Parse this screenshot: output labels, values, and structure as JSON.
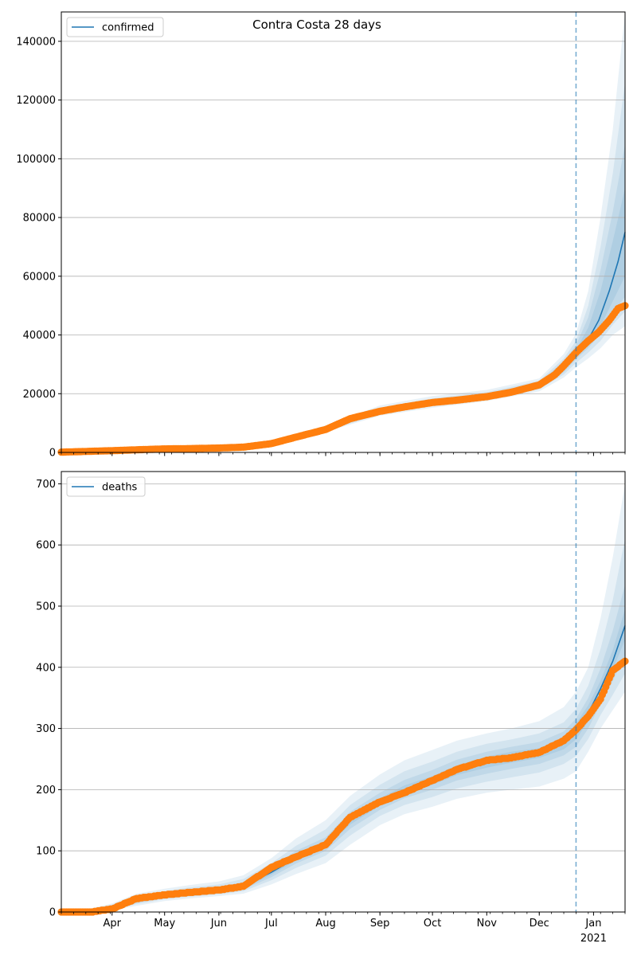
{
  "figure": {
    "title": "Contra Costa 28 days"
  },
  "chart_data": [
    {
      "type": "line",
      "name": "confirmed-panel",
      "legend": {
        "placement": "top-left",
        "entries": [
          "confirmed"
        ]
      },
      "grid": {
        "y": true,
        "x": false
      },
      "xlim": [
        "2020-03-03",
        "2021-01-19"
      ],
      "ylim": [
        0,
        150000
      ],
      "yticks": [
        0,
        20000,
        40000,
        60000,
        80000,
        100000,
        120000,
        140000
      ],
      "forecast_start": "2020-12-22",
      "fit": {
        "name": "confirmed",
        "x": [
          "2020-03-03",
          "2020-04-01",
          "2020-05-01",
          "2020-06-01",
          "2020-07-01",
          "2020-07-15",
          "2020-08-01",
          "2020-08-15",
          "2020-09-01",
          "2020-09-15",
          "2020-10-01",
          "2020-10-15",
          "2020-11-01",
          "2020-11-15",
          "2020-12-01",
          "2020-12-10",
          "2020-12-15",
          "2020-12-22",
          "2020-12-29",
          "2021-01-04",
          "2021-01-10",
          "2021-01-15",
          "2021-01-19"
        ],
        "y": [
          200,
          600,
          1200,
          1500,
          3200,
          5300,
          8000,
          11500,
          14000,
          15500,
          17000,
          17800,
          19000,
          20500,
          23000,
          26500,
          29000,
          33500,
          38500,
          45000,
          55000,
          65000,
          75000
        ]
      },
      "bands": {
        "x": [
          "2020-03-03",
          "2020-04-01",
          "2020-05-01",
          "2020-06-01",
          "2020-07-01",
          "2020-08-01",
          "2020-09-01",
          "2020-10-01",
          "2020-11-01",
          "2020-12-01",
          "2020-12-15",
          "2020-12-22",
          "2020-12-29",
          "2021-01-05",
          "2021-01-12",
          "2021-01-19"
        ],
        "levels": [
          {
            "lower": [
              0,
              400,
              900,
              1200,
              2700,
              7000,
              12500,
              15200,
              17500,
              20800,
              25500,
              29000,
              32000,
              35500,
              40000,
              43000
            ],
            "upper": [
              400,
              900,
              1600,
              2000,
              3800,
              9200,
              16000,
              19200,
              21300,
              25200,
              33500,
              40500,
              55000,
              80000,
              110000,
              150000
            ]
          },
          {
            "lower": [
              50,
              450,
              1000,
              1300,
              2850,
              7300,
              13000,
              15800,
              18000,
              21500,
              26500,
              30500,
              34000,
              38000,
              43500,
              48000
            ],
            "upper": [
              350,
              800,
              1450,
              1850,
              3550,
              8800,
              15200,
              18400,
              20500,
              24400,
              32000,
              38000,
              50000,
              70000,
              95000,
              126000
            ]
          },
          {
            "lower": [
              100,
              500,
              1050,
              1350,
              2950,
              7550,
              13400,
              16300,
              18400,
              22000,
              27300,
              31700,
              35500,
              40500,
              47500,
              53000
            ],
            "upper": [
              300,
              750,
              1350,
              1750,
              3400,
              8500,
              14700,
              17900,
              20000,
              23900,
              31000,
              36500,
              46000,
              62000,
              82000,
              105000
            ]
          },
          {
            "lower": [
              150,
              550,
              1120,
              1420,
              3050,
              7750,
              13700,
              16700,
              18800,
              22500,
              28000,
              32700,
              37000,
              43000,
              51500,
              60000
            ],
            "upper": [
              250,
              680,
              1280,
              1650,
              3300,
              8250,
              14300,
              17400,
              19500,
              23400,
              30000,
              35000,
              42500,
              55000,
              72000,
              90000
            ]
          }
        ]
      },
      "observed": {
        "x": [
          "2020-03-03",
          "2020-03-15",
          "2020-04-01",
          "2020-04-15",
          "2020-05-01",
          "2020-05-15",
          "2020-06-01",
          "2020-06-15",
          "2020-07-01",
          "2020-07-15",
          "2020-08-01",
          "2020-08-15",
          "2020-09-01",
          "2020-09-15",
          "2020-10-01",
          "2020-10-15",
          "2020-11-01",
          "2020-11-15",
          "2020-12-01",
          "2020-12-10",
          "2020-12-15",
          "2020-12-22",
          "2020-12-29",
          "2021-01-04",
          "2021-01-10",
          "2021-01-15",
          "2021-01-19"
        ],
        "y": [
          100,
          300,
          600,
          900,
          1200,
          1300,
          1500,
          1800,
          3000,
          5200,
          7800,
          11500,
          14000,
          15500,
          17000,
          17800,
          19000,
          20500,
          23000,
          26500,
          29500,
          34000,
          38000,
          41000,
          45000,
          49000,
          50000
        ]
      }
    },
    {
      "type": "line",
      "name": "deaths-panel",
      "legend": {
        "placement": "top-left",
        "entries": [
          "deaths"
        ]
      },
      "grid": {
        "y": true,
        "x": false
      },
      "xlim": [
        "2020-03-03",
        "2021-01-19"
      ],
      "ylim": [
        0,
        720
      ],
      "yticks": [
        0,
        100,
        200,
        300,
        400,
        500,
        600,
        700
      ],
      "xticks": [
        "Apr",
        "May",
        "Jun",
        "Jul",
        "Aug",
        "Sep",
        "Oct",
        "Nov",
        "Dec",
        "Jan"
      ],
      "xtick_dates": [
        "2020-04-01",
        "2020-05-01",
        "2020-06-01",
        "2020-07-01",
        "2020-08-01",
        "2020-09-01",
        "2020-10-01",
        "2020-11-01",
        "2020-12-01",
        "2021-01-01"
      ],
      "xtick_sublabel": "2021",
      "forecast_start": "2020-12-22",
      "fit": {
        "name": "deaths",
        "x": [
          "2020-03-03",
          "2020-03-20",
          "2020-04-01",
          "2020-04-15",
          "2020-05-01",
          "2020-05-15",
          "2020-06-01",
          "2020-06-15",
          "2020-07-01",
          "2020-07-15",
          "2020-08-01",
          "2020-08-15",
          "2020-09-01",
          "2020-09-15",
          "2020-10-01",
          "2020-10-15",
          "2020-11-01",
          "2020-11-15",
          "2020-12-01",
          "2020-12-15",
          "2020-12-22",
          "2020-12-29",
          "2021-01-05",
          "2021-01-12",
          "2021-01-19"
        ],
        "y": [
          0,
          2,
          8,
          20,
          27,
          32,
          36,
          42,
          65,
          88,
          110,
          150,
          180,
          200,
          215,
          232,
          245,
          253,
          260,
          275,
          295,
          325,
          365,
          410,
          468
        ]
      },
      "bands": {
        "x": [
          "2020-03-03",
          "2020-03-20",
          "2020-04-01",
          "2020-04-15",
          "2020-05-01",
          "2020-05-15",
          "2020-06-01",
          "2020-06-15",
          "2020-07-01",
          "2020-07-15",
          "2020-08-01",
          "2020-08-15",
          "2020-09-01",
          "2020-09-15",
          "2020-10-01",
          "2020-10-15",
          "2020-11-01",
          "2020-11-15",
          "2020-12-01",
          "2020-12-15",
          "2020-12-22",
          "2020-12-29",
          "2021-01-05",
          "2021-01-12",
          "2021-01-19"
        ],
        "levels": [
          {
            "lower": [
              0,
              0,
              3,
              10,
              18,
              22,
              26,
              30,
              45,
              62,
              80,
              110,
              142,
              160,
              172,
              185,
              195,
              200,
              205,
              218,
              230,
              262,
              300,
              330,
              360
            ],
            "upper": [
              3,
              6,
              14,
              30,
              38,
              44,
              50,
              60,
              88,
              120,
              150,
              190,
              225,
              248,
              265,
              280,
              292,
              300,
              312,
              335,
              360,
              400,
              480,
              580,
              700
            ]
          },
          {
            "lower": [
              0,
              1,
              4,
              13,
              21,
              25,
              29,
              34,
              52,
              72,
              92,
              125,
              157,
              175,
              188,
              202,
              213,
              220,
              228,
              242,
              255,
              283,
              322,
              355,
              390
            ],
            "upper": [
              2,
              4,
              12,
              27,
              34,
              40,
              45,
              54,
              80,
              108,
              135,
              175,
              208,
              230,
              246,
              262,
              275,
              282,
              292,
              310,
              332,
              370,
              430,
              510,
              610
            ]
          },
          {
            "lower": [
              0,
              1,
              5,
              15,
              23,
              28,
              32,
              37,
              57,
              79,
              100,
              136,
              167,
              186,
              200,
              215,
              226,
              234,
              242,
              256,
              270,
              300,
              340,
              378,
              420
            ],
            "upper": [
              1,
              3,
              11,
              25,
              31,
              37,
              41,
              49,
              74,
              100,
              122,
              164,
              195,
              216,
              232,
              249,
              262,
              270,
              278,
              295,
              316,
              350,
              398,
              460,
              535
            ]
          },
          {
            "lower": [
              0,
              1,
              6,
              17,
              25,
              30,
              34,
              39,
              61,
              84,
              106,
              143,
              174,
              193,
              208,
              224,
              236,
              244,
              252,
              266,
              282,
              312,
              352,
              396,
              445
            ],
            "upper": [
              1,
              3,
              10,
              23,
              29,
              34,
              38,
              45,
              69,
              93,
              114,
              157,
              186,
              207,
              222,
              240,
              254,
              262,
              268,
              284,
              308,
              338,
              378,
              428,
              495
            ]
          }
        ]
      },
      "observed": {
        "x": [
          "2020-03-03",
          "2020-03-20",
          "2020-04-01",
          "2020-04-15",
          "2020-05-01",
          "2020-05-15",
          "2020-06-01",
          "2020-06-15",
          "2020-07-01",
          "2020-07-15",
          "2020-08-01",
          "2020-08-15",
          "2020-09-01",
          "2020-09-15",
          "2020-10-01",
          "2020-10-15",
          "2020-11-01",
          "2020-11-15",
          "2020-12-01",
          "2020-12-15",
          "2020-12-22",
          "2020-12-29",
          "2021-01-05",
          "2021-01-12",
          "2021-01-19"
        ],
        "y": [
          0,
          0,
          5,
          22,
          28,
          32,
          36,
          42,
          73,
          90,
          110,
          155,
          180,
          195,
          215,
          233,
          248,
          252,
          261,
          280,
          298,
          320,
          348,
          395,
          410
        ]
      }
    }
  ]
}
